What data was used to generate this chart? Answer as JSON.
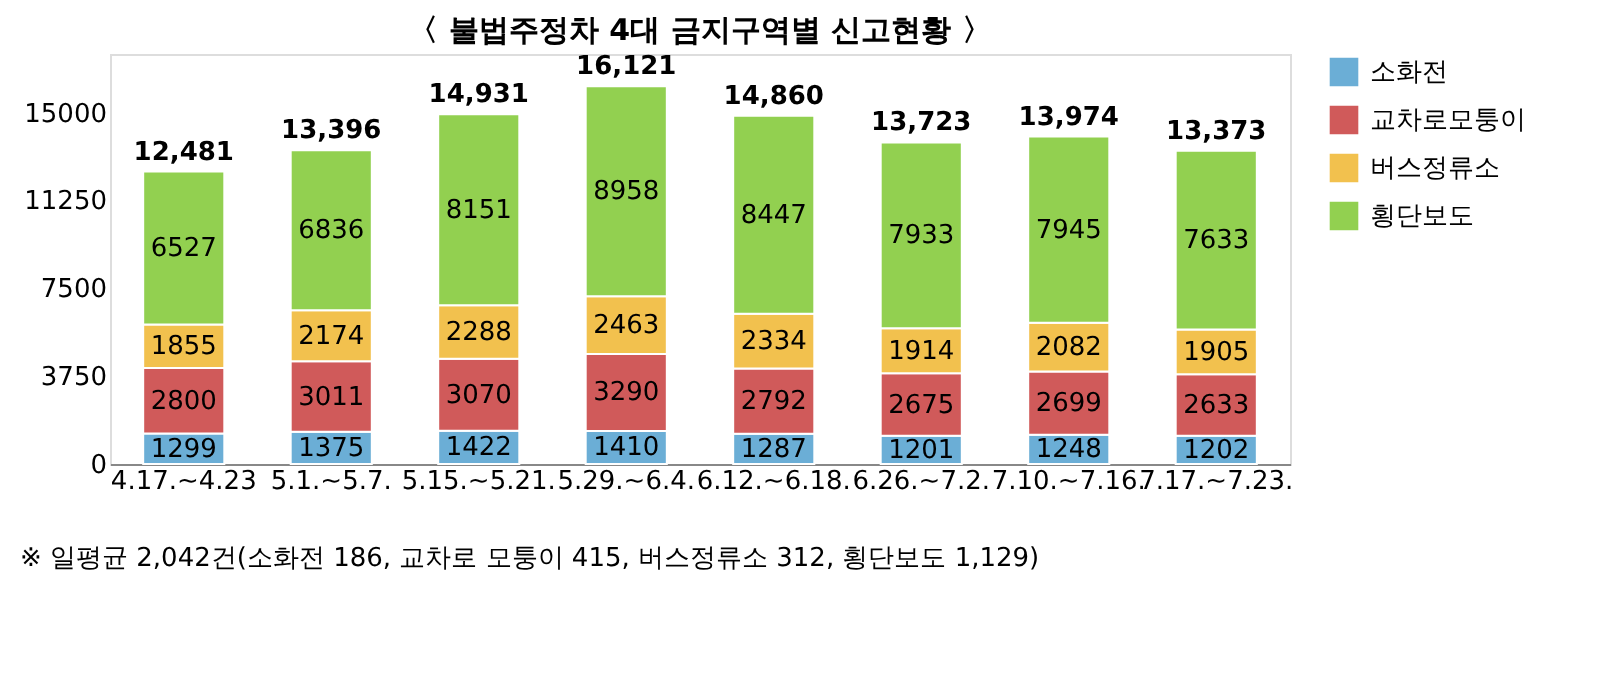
{
  "chart_data": {
    "type": "bar",
    "title": "〈 불법주정차 4대 금지구역별 신고현황 〉",
    "categories": [
      "4.17.~4.23",
      "5.1.~5.7.",
      "5.15.~5.21.",
      "5.29.~6.4.",
      "6.12.~6.18.",
      "6.26.~7.2.",
      "7.10.~7.16.",
      "7.17.~7.23."
    ],
    "series": [
      {
        "name": "소화전",
        "color": "#6baed6",
        "values": [
          1299,
          1375,
          1422,
          1410,
          1287,
          1201,
          1248,
          1202
        ]
      },
      {
        "name": "교차로모퉁이",
        "color": "#d05a5a",
        "values": [
          2800,
          3011,
          3070,
          3290,
          2792,
          2675,
          2699,
          2633
        ]
      },
      {
        "name": "버스정류소",
        "color": "#f2c14e",
        "values": [
          1855,
          2174,
          2288,
          2463,
          2334,
          1914,
          2082,
          1905
        ]
      },
      {
        "name": "횡단보도",
        "color": "#92d050",
        "values": [
          6527,
          6836,
          8151,
          8958,
          8447,
          7933,
          7945,
          7633
        ]
      }
    ],
    "stacked": true,
    "data_labels": true,
    "totals": [
      "12,481",
      "13,396",
      "14,931",
      "16,121",
      "14,860",
      "13,723",
      "13,974",
      "13,373"
    ],
    "ylim": [
      0,
      17500
    ],
    "yticks": [
      0,
      3750,
      7500,
      11250,
      15000
    ],
    "grid": false,
    "legend": "right",
    "annotations": [
      "※ 일평균 2,042건(소화전 186, 교차로 모퉁이 415, 버스정류소 312, 횡단보도 1,129)"
    ]
  }
}
